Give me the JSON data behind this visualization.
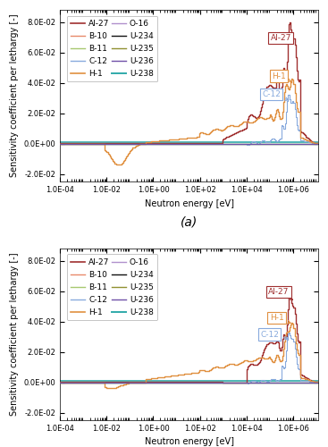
{
  "ylabel": "Sensitivity coefficient per lethargy [-]",
  "xlabel": "Neutron energy [eV]",
  "xlim": [
    0.0001,
    12000000.0
  ],
  "ylim": [
    -0.025,
    0.088
  ],
  "yticks": [
    -0.02,
    0.0,
    0.02,
    0.04,
    0.06,
    0.08
  ],
  "ytick_labels": [
    "-2.0E-02",
    "0.0E+00",
    "2.0E-02",
    "4.0E-02",
    "6.0E-02",
    "8.0E-02"
  ],
  "xtick_labels": [
    "1.0E-04",
    "1.0E-02",
    "1.0E+00",
    "1.0E+02",
    "1.0E+04",
    "1.0E+06"
  ],
  "xtick_vals": [
    0.0001,
    0.01,
    1.0,
    100.0,
    10000.0,
    1000000.0
  ],
  "series": {
    "Al-27": {
      "color": "#A03030",
      "lw": 1.0
    },
    "B-10": {
      "color": "#E8896A",
      "lw": 0.8
    },
    "B-11": {
      "color": "#A8C870",
      "lw": 0.8
    },
    "C-12": {
      "color": "#88AADD",
      "lw": 0.8
    },
    "H-1": {
      "color": "#E09040",
      "lw": 1.0
    },
    "O-16": {
      "color": "#B090CC",
      "lw": 0.8
    },
    "U-234": {
      "color": "#111111",
      "lw": 0.8
    },
    "U-235": {
      "color": "#909030",
      "lw": 0.8
    },
    "U-236": {
      "color": "#7050A8",
      "lw": 0.8
    },
    "U-238": {
      "color": "#30AAAA",
      "lw": 1.2
    }
  },
  "legend_order": [
    "Al-27",
    "B-10",
    "B-11",
    "C-12",
    "H-1",
    "O-16",
    "U-234",
    "U-235",
    "U-236",
    "U-238"
  ],
  "background_color": "#FFFFFF",
  "legend_fontsize": 6.5,
  "axis_fontsize": 7,
  "tick_fontsize": 6
}
